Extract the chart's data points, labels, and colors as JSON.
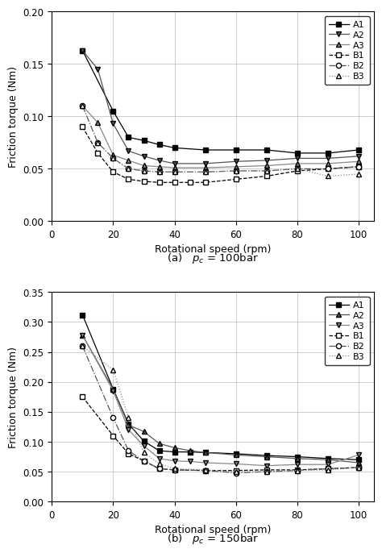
{
  "plot_a": {
    "caption": "(a)   $p_c$ = 100bar",
    "ylim": [
      0.0,
      0.2
    ],
    "yticks": [
      0.0,
      0.05,
      0.1,
      0.15,
      0.2
    ],
    "ylabel": "Friction torque (Nm)",
    "xlabel": "Rotational speed (rpm)",
    "series": {
      "A1": {
        "x": [
          10,
          20,
          25,
          30,
          35,
          40,
          50,
          60,
          70,
          80,
          90,
          100
        ],
        "y": [
          0.163,
          0.105,
          0.08,
          0.077,
          0.073,
          0.07,
          0.068,
          0.068,
          0.068,
          0.065,
          0.065,
          0.068
        ],
        "marker": "s",
        "filled": true,
        "linestyle": "-",
        "color": "#000000"
      },
      "A2": {
        "x": [
          10,
          15,
          20,
          25,
          30,
          35,
          40,
          50,
          60,
          70,
          80,
          90,
          100
        ],
        "y": [
          0.163,
          0.145,
          0.093,
          0.067,
          0.062,
          0.058,
          0.055,
          0.055,
          0.057,
          0.058,
          0.06,
          0.06,
          0.062
        ],
        "marker": "v",
        "filled": true,
        "linestyle": "-",
        "color": "#555555"
      },
      "A3": {
        "x": [
          10,
          15,
          20,
          25,
          30,
          35,
          40,
          50,
          60,
          70,
          80,
          90,
          100
        ],
        "y": [
          0.11,
          0.094,
          0.063,
          0.058,
          0.053,
          0.052,
          0.051,
          0.051,
          0.052,
          0.053,
          0.055,
          0.055,
          0.057
        ],
        "marker": "^",
        "filled": true,
        "linestyle": "-",
        "color": "#888888"
      },
      "B1": {
        "x": [
          10,
          15,
          20,
          25,
          30,
          35,
          40,
          45,
          50,
          60,
          70,
          80,
          90,
          100
        ],
        "y": [
          0.09,
          0.065,
          0.047,
          0.04,
          0.038,
          0.037,
          0.037,
          0.037,
          0.037,
          0.04,
          0.043,
          0.048,
          0.05,
          0.052
        ],
        "marker": "s",
        "filled": false,
        "linestyle": "--",
        "color": "#000000"
      },
      "B2": {
        "x": [
          10,
          15,
          20,
          25,
          30,
          35,
          40,
          50,
          60,
          70,
          80,
          90,
          100
        ],
        "y": [
          0.11,
          0.075,
          0.06,
          0.05,
          0.048,
          0.047,
          0.047,
          0.047,
          0.048,
          0.048,
          0.05,
          0.05,
          0.052
        ],
        "marker": "o",
        "filled": false,
        "linestyle": "-.",
        "color": "#555555"
      },
      "B3": {
        "x": [
          10,
          15,
          20,
          25,
          30,
          35,
          40,
          50,
          60,
          70,
          80,
          90,
          100
        ],
        "y": [
          0.11,
          0.075,
          0.06,
          0.05,
          0.048,
          0.047,
          0.047,
          0.047,
          0.048,
          0.048,
          0.05,
          0.043,
          0.045
        ],
        "marker": "^",
        "filled": false,
        "linestyle": ":",
        "color": "#888888"
      }
    }
  },
  "plot_b": {
    "caption": "(b)   $p_c$ = 150bar",
    "ylim": [
      0.0,
      0.35
    ],
    "yticks": [
      0.0,
      0.05,
      0.1,
      0.15,
      0.2,
      0.25,
      0.3,
      0.35
    ],
    "ylabel": "Friction torque (Nm)",
    "xlabel": "Rotational speed (rpm)",
    "series": {
      "A1": {
        "x": [
          10,
          20,
          25,
          30,
          35,
          40,
          45,
          50,
          60,
          70,
          80,
          90,
          100
        ],
        "y": [
          0.312,
          0.188,
          0.13,
          0.101,
          0.085,
          0.083,
          0.083,
          0.082,
          0.08,
          0.077,
          0.075,
          0.072,
          0.07
        ],
        "marker": "s",
        "filled": true,
        "linestyle": "-",
        "color": "#000000"
      },
      "A2": {
        "x": [
          10,
          20,
          25,
          30,
          35,
          40,
          45,
          50,
          60,
          70,
          80,
          90,
          100
        ],
        "y": [
          0.278,
          0.188,
          0.128,
          0.117,
          0.097,
          0.09,
          0.085,
          0.082,
          0.078,
          0.075,
          0.072,
          0.07,
          0.065
        ],
        "marker": "^",
        "filled": true,
        "linestyle": "-",
        "color": "#555555"
      },
      "A3": {
        "x": [
          10,
          20,
          25,
          30,
          35,
          40,
          45,
          50,
          60,
          70,
          80,
          90,
          100
        ],
        "y": [
          0.278,
          0.185,
          0.12,
          0.093,
          0.072,
          0.068,
          0.067,
          0.065,
          0.063,
          0.06,
          0.062,
          0.062,
          0.078
        ],
        "marker": "v",
        "filled": true,
        "linestyle": "-",
        "color": "#888888"
      },
      "B1": {
        "x": [
          10,
          20,
          25,
          30,
          35,
          40,
          50,
          60,
          70,
          80,
          90,
          100
        ],
        "y": [
          0.175,
          0.11,
          0.08,
          0.068,
          0.055,
          0.053,
          0.052,
          0.052,
          0.053,
          0.053,
          0.055,
          0.057
        ],
        "marker": "s",
        "filled": false,
        "linestyle": "--",
        "color": "#000000"
      },
      "B2": {
        "x": [
          10,
          20,
          25,
          30,
          35,
          40,
          50,
          60,
          70,
          80,
          90,
          100
        ],
        "y": [
          0.26,
          0.14,
          0.085,
          0.068,
          0.055,
          0.053,
          0.052,
          0.048,
          0.05,
          0.052,
          0.055,
          0.057
        ],
        "marker": "o",
        "filled": false,
        "linestyle": "-.",
        "color": "#555555"
      },
      "B3": {
        "x": [
          10,
          20,
          25,
          30,
          35,
          40,
          50,
          60,
          70,
          80,
          90,
          100
        ],
        "y": [
          0.26,
          0.22,
          0.14,
          0.082,
          0.063,
          0.055,
          0.053,
          0.05,
          0.05,
          0.052,
          0.053,
          0.057
        ],
        "marker": "^",
        "filled": false,
        "linestyle": ":",
        "color": "#888888"
      }
    }
  },
  "series_order": [
    "A1",
    "A2",
    "A3",
    "B1",
    "B2",
    "B3"
  ],
  "legend_labels": [
    "A1",
    "A2",
    "A3",
    "B1",
    "B2",
    "B3"
  ]
}
